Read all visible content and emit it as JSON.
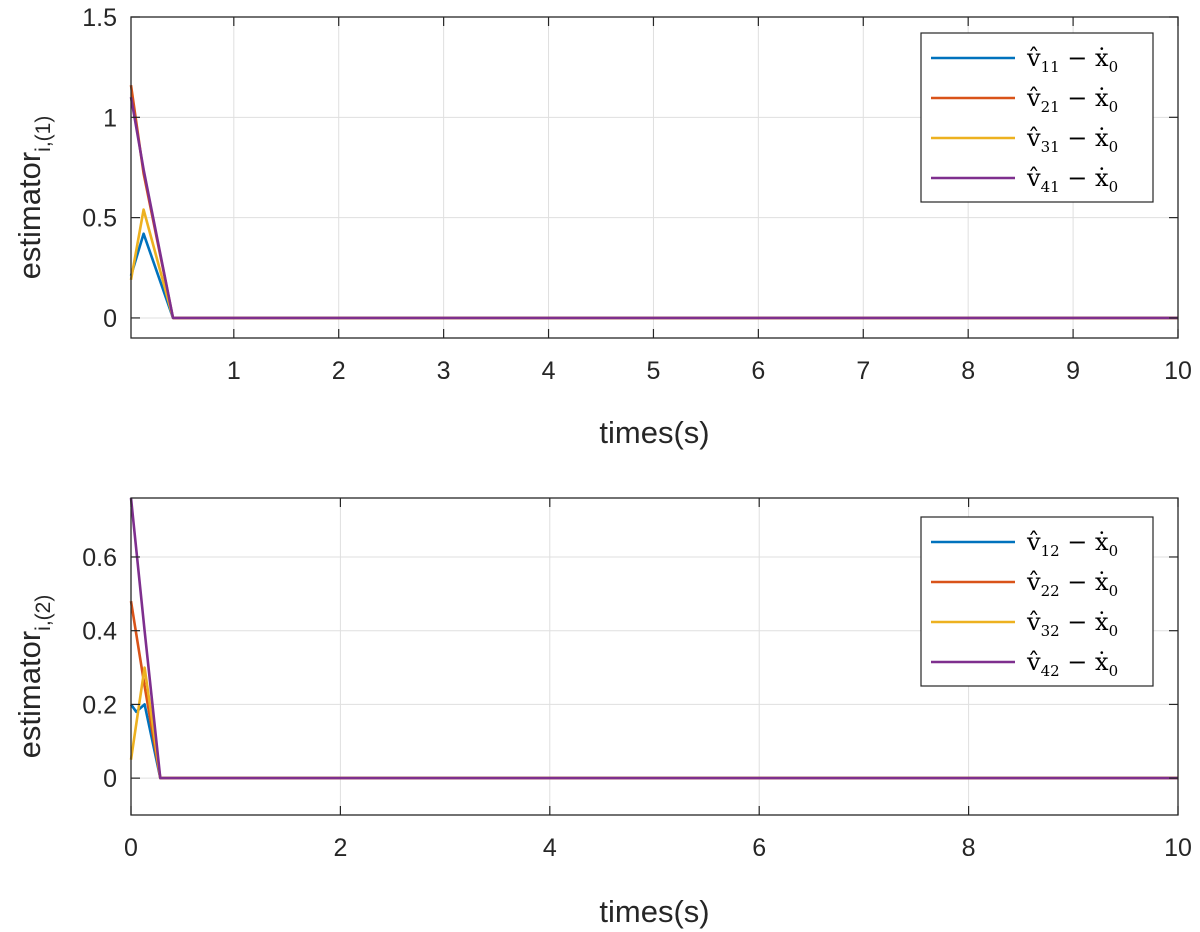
{
  "colors": {
    "blue": "#0072BD",
    "orange": "#D95319",
    "yellow": "#EDB120",
    "purple": "#7E2F8E",
    "axis": "#262626",
    "grid": "#dfdfdf"
  },
  "chart_data": [
    {
      "type": "line",
      "xlabel": "times(s)",
      "ylabel_main": "estimator",
      "ylabel_sub": "i,(1)",
      "xlim": [
        0.02,
        10
      ],
      "ylim": [
        -0.1,
        1.5
      ],
      "xticks": [
        1,
        2,
        3,
        4,
        5,
        6,
        7,
        8,
        9,
        10
      ],
      "xtick_labels": [
        "1",
        "2",
        "3",
        "4",
        "5",
        "6",
        "7",
        "8",
        "9",
        "10"
      ],
      "yticks": [
        0,
        0.5,
        1,
        1.5
      ],
      "ytick_labels": [
        "0",
        "0.5",
        "1",
        "1.5"
      ],
      "grid": true,
      "legend_position": "top-right",
      "series": [
        {
          "name": "v̂11 − ẋ0",
          "base": "v̂",
          "sub": "11",
          "rest": " − ẋ",
          "sub2": "0",
          "color": "#0072BD",
          "x": [
            0.02,
            0.14,
            0.42,
            10
          ],
          "y": [
            0.21,
            0.42,
            0.0,
            0.0
          ]
        },
        {
          "name": "v̂21 − ẋ0",
          "base": "v̂",
          "sub": "21",
          "rest": " − ẋ",
          "sub2": "0",
          "color": "#D95319",
          "x": [
            0.02,
            0.14,
            0.42,
            10
          ],
          "y": [
            1.16,
            0.72,
            0.0,
            0.0
          ]
        },
        {
          "name": "v̂31 − ẋ0",
          "base": "v̂",
          "sub": "31",
          "rest": " − ẋ",
          "sub2": "0",
          "color": "#EDB120",
          "x": [
            0.02,
            0.14,
            0.42,
            10
          ],
          "y": [
            0.19,
            0.54,
            0.0,
            0.0
          ]
        },
        {
          "name": "v̂41 − ẋ0",
          "base": "v̂",
          "sub": "41",
          "rest": " − ẋ",
          "sub2": "0",
          "color": "#7E2F8E",
          "x": [
            0.02,
            0.14,
            0.42,
            10
          ],
          "y": [
            1.1,
            0.74,
            0.0,
            0.0
          ]
        }
      ]
    },
    {
      "type": "line",
      "xlabel": "times(s)",
      "ylabel_main": "estimator",
      "ylabel_sub": "i,(2)",
      "xlim": [
        0,
        10
      ],
      "ylim": [
        -0.1,
        0.76
      ],
      "xticks": [
        0,
        2,
        4,
        6,
        8,
        10
      ],
      "xtick_labels": [
        "0",
        "2",
        "4",
        "6",
        "8",
        "10"
      ],
      "yticks": [
        0,
        0.2,
        0.4,
        0.6
      ],
      "ytick_labels": [
        "0",
        "0.2",
        "0.4",
        "0.6"
      ],
      "grid": true,
      "legend_position": "top-right",
      "series": [
        {
          "name": "v̂12 − ẋ0",
          "base": "v̂",
          "sub": "12",
          "rest": " − ẋ",
          "sub2": "0",
          "color": "#0072BD",
          "x": [
            0,
            0.05,
            0.13,
            0.28,
            10
          ],
          "y": [
            0.2,
            0.18,
            0.2,
            0.0,
            0.0
          ]
        },
        {
          "name": "v̂22 − ẋ0",
          "base": "v̂",
          "sub": "22",
          "rest": " − ẋ",
          "sub2": "0",
          "color": "#D95319",
          "x": [
            0,
            0.13,
            0.28,
            10
          ],
          "y": [
            0.48,
            0.25,
            0.0,
            0.0
          ]
        },
        {
          "name": "v̂32 − ẋ0",
          "base": "v̂",
          "sub": "32",
          "rest": " − ẋ",
          "sub2": "0",
          "color": "#EDB120",
          "x": [
            0,
            0.13,
            0.28,
            10
          ],
          "y": [
            0.05,
            0.3,
            0.0,
            0.0
          ]
        },
        {
          "name": "v̂42 − ẋ0",
          "base": "v̂",
          "sub": "42",
          "rest": " − ẋ",
          "sub2": "0",
          "color": "#7E2F8E",
          "x": [
            0,
            0.13,
            0.28,
            10
          ],
          "y": [
            0.76,
            0.4,
            0.0,
            0.0
          ]
        }
      ]
    }
  ]
}
